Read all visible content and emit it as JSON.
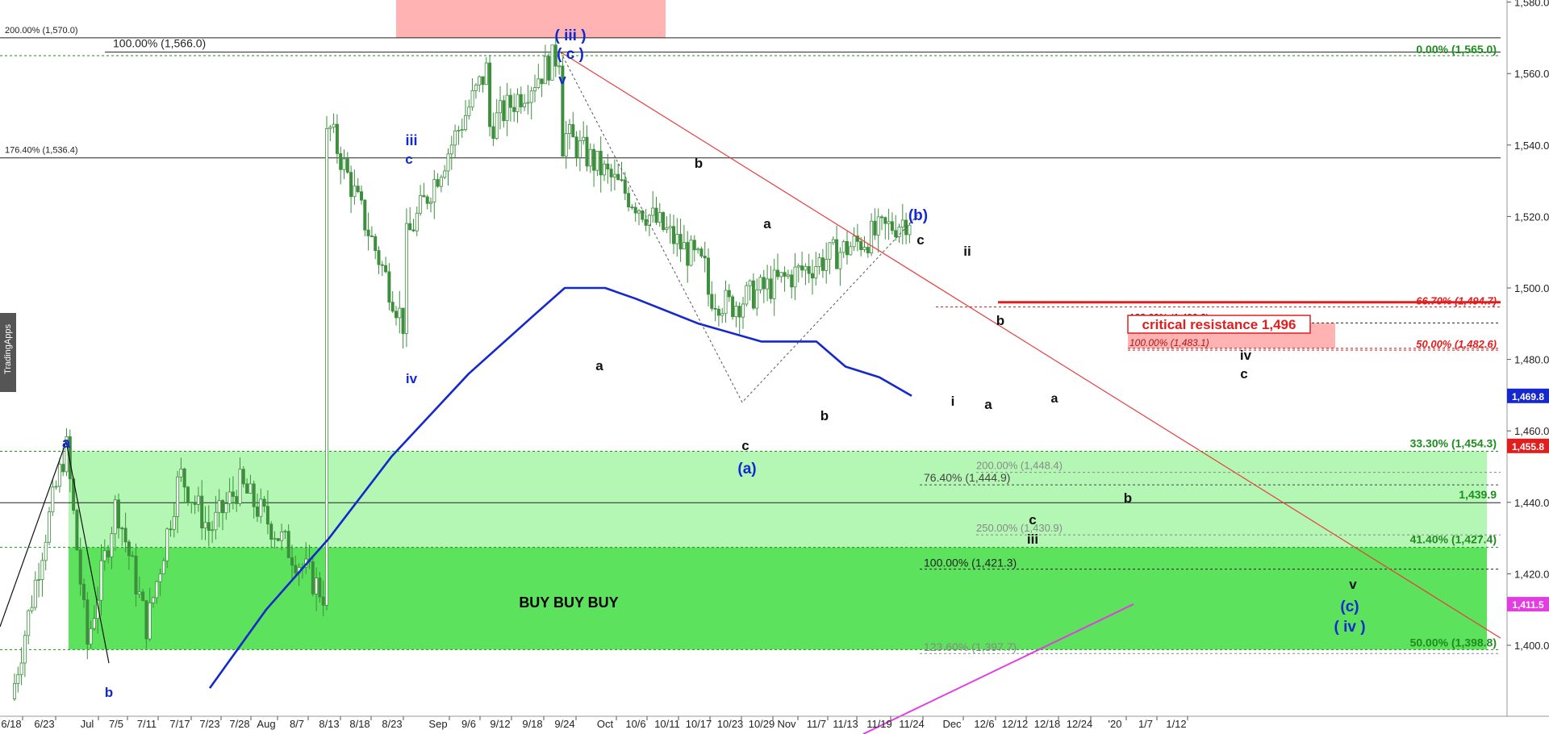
{
  "brand": {
    "label": "TradingApps"
  },
  "chart_data": {
    "type": "line",
    "title": "",
    "xlabel": "",
    "ylabel": "",
    "ylim": [
      1380,
      1598
    ],
    "yticks": [
      1400,
      1420,
      1440,
      1460,
      1480,
      1500,
      1520,
      1540,
      1560,
      1580
    ],
    "ytick_labels": [
      "1,400.0",
      "1,420.0",
      "1,440.0",
      "1,460.0",
      "1,480.0",
      "1,500.0",
      "1,520.0",
      "1,540.0",
      "1,560.0",
      "1,580.0"
    ],
    "xticks": [
      "6/18",
      "6/23",
      "Jul",
      "7/5",
      "7/11",
      "7/17",
      "7/23",
      "7/28",
      "Aug",
      "8/7",
      "8/13",
      "8/18",
      "8/23",
      "Sep",
      "9/6",
      "9/12",
      "9/18",
      "9/24",
      "Oct",
      "10/6",
      "10/11",
      "10/17",
      "10/23",
      "10/29",
      "Nov",
      "11/7",
      "11/13",
      "11/19",
      "11/24",
      "Dec",
      "12/6",
      "12/12",
      "12/18",
      "12/24",
      "'20",
      "1/7",
      "1/12"
    ],
    "grid": false,
    "colors": {
      "candle": "#3d8f3d",
      "moving_average": "#1428cc",
      "trendline": "#e83c3c",
      "zone_light": "#b4f7b4",
      "zone_dark": "#5ce25c",
      "pink_box": "#ffb3b3",
      "magenta": "#e23ce2",
      "critical": "#e01e1e",
      "fib_green": "#1e8c1e",
      "wave_blue": "#1428d2"
    },
    "series": [
      {
        "kind": "price",
        "points": [
          {
            "x": "6/18",
            "y": 1385
          },
          {
            "x": "6/23",
            "y": 1430
          },
          {
            "x": "6/25",
            "y": 1456
          },
          {
            "x": "Jul",
            "y": 1400
          },
          {
            "x": "7/5",
            "y": 1440
          },
          {
            "x": "7/11",
            "y": 1405
          },
          {
            "x": "7/17",
            "y": 1448
          },
          {
            "x": "7/23",
            "y": 1432
          },
          {
            "x": "7/28",
            "y": 1445
          },
          {
            "x": "7/30",
            "y": 1413
          },
          {
            "x": "Aug",
            "y": 1445
          },
          {
            "x": "8/7",
            "y": 1505
          },
          {
            "x": "8/13",
            "y": 1545
          },
          {
            "x": "8/14",
            "y": 1490
          },
          {
            "x": "8/18",
            "y": 1530
          },
          {
            "x": "8/23",
            "y": 1505
          },
          {
            "x": "8/25",
            "y": 1562
          },
          {
            "x": "Sep",
            "y": 1530
          },
          {
            "x": "9/4",
            "y": 1566
          },
          {
            "x": "9/6",
            "y": 1520
          },
          {
            "x": "9/12",
            "y": 1495
          },
          {
            "x": "9/18",
            "y": 1505
          },
          {
            "x": "9/24",
            "y": 1543
          },
          {
            "x": "9/26",
            "y": 1505
          },
          {
            "x": "Oct",
            "y": 1467
          },
          {
            "x": "10/6",
            "y": 1520
          },
          {
            "x": "10/11",
            "y": 1485
          },
          {
            "x": "10/17",
            "y": 1500
          },
          {
            "x": "10/23",
            "y": 1495
          },
          {
            "x": "10/26",
            "y": 1521
          },
          {
            "x": "10/29",
            "y": 1488
          },
          {
            "x": "Nov",
            "y": 1516
          },
          {
            "x": "11/5",
            "y": 1480
          },
          {
            "x": "11/7",
            "y": 1495
          },
          {
            "x": "11/10",
            "y": 1465
          },
          {
            "x": "11/13",
            "y": 1448
          },
          {
            "x": "11/16",
            "y": 1473
          },
          {
            "x": "11/19",
            "y": 1472
          },
          {
            "x": "11/24",
            "y": 1455.8
          }
        ]
      },
      {
        "kind": "moving_average",
        "points": [
          {
            "x": "7/23",
            "y": 1388
          },
          {
            "x": "Aug",
            "y": 1410
          },
          {
            "x": "8/13",
            "y": 1430
          },
          {
            "x": "8/23",
            "y": 1453
          },
          {
            "x": "9/6",
            "y": 1476
          },
          {
            "x": "9/18",
            "y": 1492
          },
          {
            "x": "9/24",
            "y": 1500
          },
          {
            "x": "Oct",
            "y": 1500
          },
          {
            "x": "10/6",
            "y": 1497
          },
          {
            "x": "10/17",
            "y": 1490
          },
          {
            "x": "10/29",
            "y": 1485
          },
          {
            "x": "11/7",
            "y": 1485
          },
          {
            "x": "11/13",
            "y": 1478
          },
          {
            "x": "11/19",
            "y": 1475
          },
          {
            "x": "11/24",
            "y": 1469.8
          }
        ]
      }
    ],
    "level_lines": [
      {
        "label": "200.00% (1,570.0)",
        "y": 1570.0,
        "side": "left",
        "style": "solid",
        "color": "#222222"
      },
      {
        "label": "100.00% (1,566.0)",
        "y": 1566.0,
        "side": "left",
        "style": "solid",
        "color": "#222222"
      },
      {
        "label": "0.00% (1,565.0)",
        "y": 1565.0,
        "side": "right",
        "style": "dashed",
        "color": "#1e8c1e"
      },
      {
        "label": "176.40% (1,536.4)",
        "y": 1536.4,
        "side": "left",
        "style": "solid",
        "color": "#222222"
      },
      {
        "label": "66.70% (1,494.7)",
        "y": 1494.7,
        "side": "right",
        "style": "dashed",
        "color": "#e01e1e"
      },
      {
        "label": "123.60% (1,490.2)",
        "y": 1490.2,
        "side": "left",
        "style": "dashed",
        "color": "#222222"
      },
      {
        "label": "100.00% (1,483.1)",
        "y": 1483.1,
        "side": "left",
        "style": "dashed",
        "color": "#b01818"
      },
      {
        "label": "50.00% (1,482.6)",
        "y": 1482.6,
        "side": "right",
        "style": "dashed",
        "color": "#e01e1e"
      },
      {
        "label": "33.30% (1,454.3)",
        "y": 1454.3,
        "side": "right",
        "style": "dashed",
        "color": "#1e8c1e"
      },
      {
        "label": "200.00% (1,448.4)",
        "y": 1448.4,
        "side": "left",
        "style": "dashed",
        "color": "#888888"
      },
      {
        "label": "76.40% (1,444.9)",
        "y": 1444.9,
        "side": "left",
        "style": "dashed",
        "color": "#444444"
      },
      {
        "label": "1,439.9",
        "y": 1439.9,
        "side": "right",
        "style": "solid",
        "color": "#1e8c1e"
      },
      {
        "label": "250.00% (1,430.9)",
        "y": 1430.9,
        "side": "left",
        "style": "dashed",
        "color": "#888888"
      },
      {
        "label": "41.40% (1,427.4)",
        "y": 1427.4,
        "side": "right",
        "style": "dashed",
        "color": "#1e8c1e"
      },
      {
        "label": "100.00% (1,421.3)",
        "y": 1421.3,
        "side": "left",
        "style": "dashed",
        "color": "#222222"
      },
      {
        "label": "123.60% (1,397.7)",
        "y": 1397.7,
        "side": "left",
        "style": "dashed",
        "color": "#888888"
      },
      {
        "label": "50.00% (1,398.8)",
        "y": 1398.8,
        "side": "right",
        "style": "dashed",
        "color": "#1e8c1e"
      }
    ],
    "zones": [
      {
        "kind": "light_green",
        "y_low": 1427.4,
        "y_high": 1454.3
      },
      {
        "kind": "dark_green",
        "y_low": 1398.8,
        "y_high": 1427.4
      },
      {
        "kind": "pink_top",
        "y_low": 1570,
        "y_high": 1598
      },
      {
        "kind": "pink_resistance",
        "y_low": 1483.1,
        "y_high": 1490.2
      }
    ],
    "annotations": {
      "critical_resistance": {
        "label": "critical resistance 1,496",
        "y": 1496
      },
      "zone_text": {
        "label": "BUY BUY BUY",
        "y": 1412
      }
    },
    "price_badges": [
      {
        "label": "1,469.8",
        "y": 1469.8,
        "color": "#1428cc"
      },
      {
        "label": "1,455.8",
        "y": 1455.8,
        "color": "#e01e1e"
      },
      {
        "label": "1,411.5",
        "y": 1411.5,
        "color": "#e23ce2"
      }
    ],
    "wave_labels": [
      {
        "label": "( iii )",
        "color": "#1428d2"
      },
      {
        "label": "( c )",
        "color": "#1428d2"
      },
      {
        "label": "v",
        "color": "#1428d2"
      },
      {
        "label": "iii",
        "color": "#1428d2"
      },
      {
        "label": "c",
        "color": "#1428d2"
      },
      {
        "label": "iv",
        "color": "#1428d2"
      },
      {
        "label": "a",
        "color": "#1428d2"
      },
      {
        "label": "b",
        "color": "#1428d2"
      },
      {
        "label": "b",
        "color": "#111111"
      },
      {
        "label": "a",
        "color": "#111111"
      },
      {
        "label": "a",
        "color": "#111111"
      },
      {
        "label": "c",
        "color": "#111111"
      },
      {
        "label": "(a)",
        "color": "#1428d2"
      },
      {
        "label": "b",
        "color": "#111111"
      },
      {
        "label": "(b)",
        "color": "#1428d2"
      },
      {
        "label": "c",
        "color": "#111111"
      },
      {
        "label": "ii",
        "color": "#111111"
      },
      {
        "label": "i",
        "color": "#111111"
      },
      {
        "label": "b",
        "color": "#111111"
      },
      {
        "label": "a",
        "color": "#111111"
      },
      {
        "label": "a",
        "color": "#111111"
      },
      {
        "label": "b",
        "color": "#111111"
      },
      {
        "label": "c",
        "color": "#111111"
      },
      {
        "label": "iii",
        "color": "#111111"
      },
      {
        "label": "iv",
        "color": "#111111"
      },
      {
        "label": "c",
        "color": "#111111"
      },
      {
        "label": "v",
        "color": "#111111"
      },
      {
        "label": "(c)",
        "color": "#1428d2"
      },
      {
        "label": "( iv )",
        "color": "#1428d2"
      }
    ]
  }
}
